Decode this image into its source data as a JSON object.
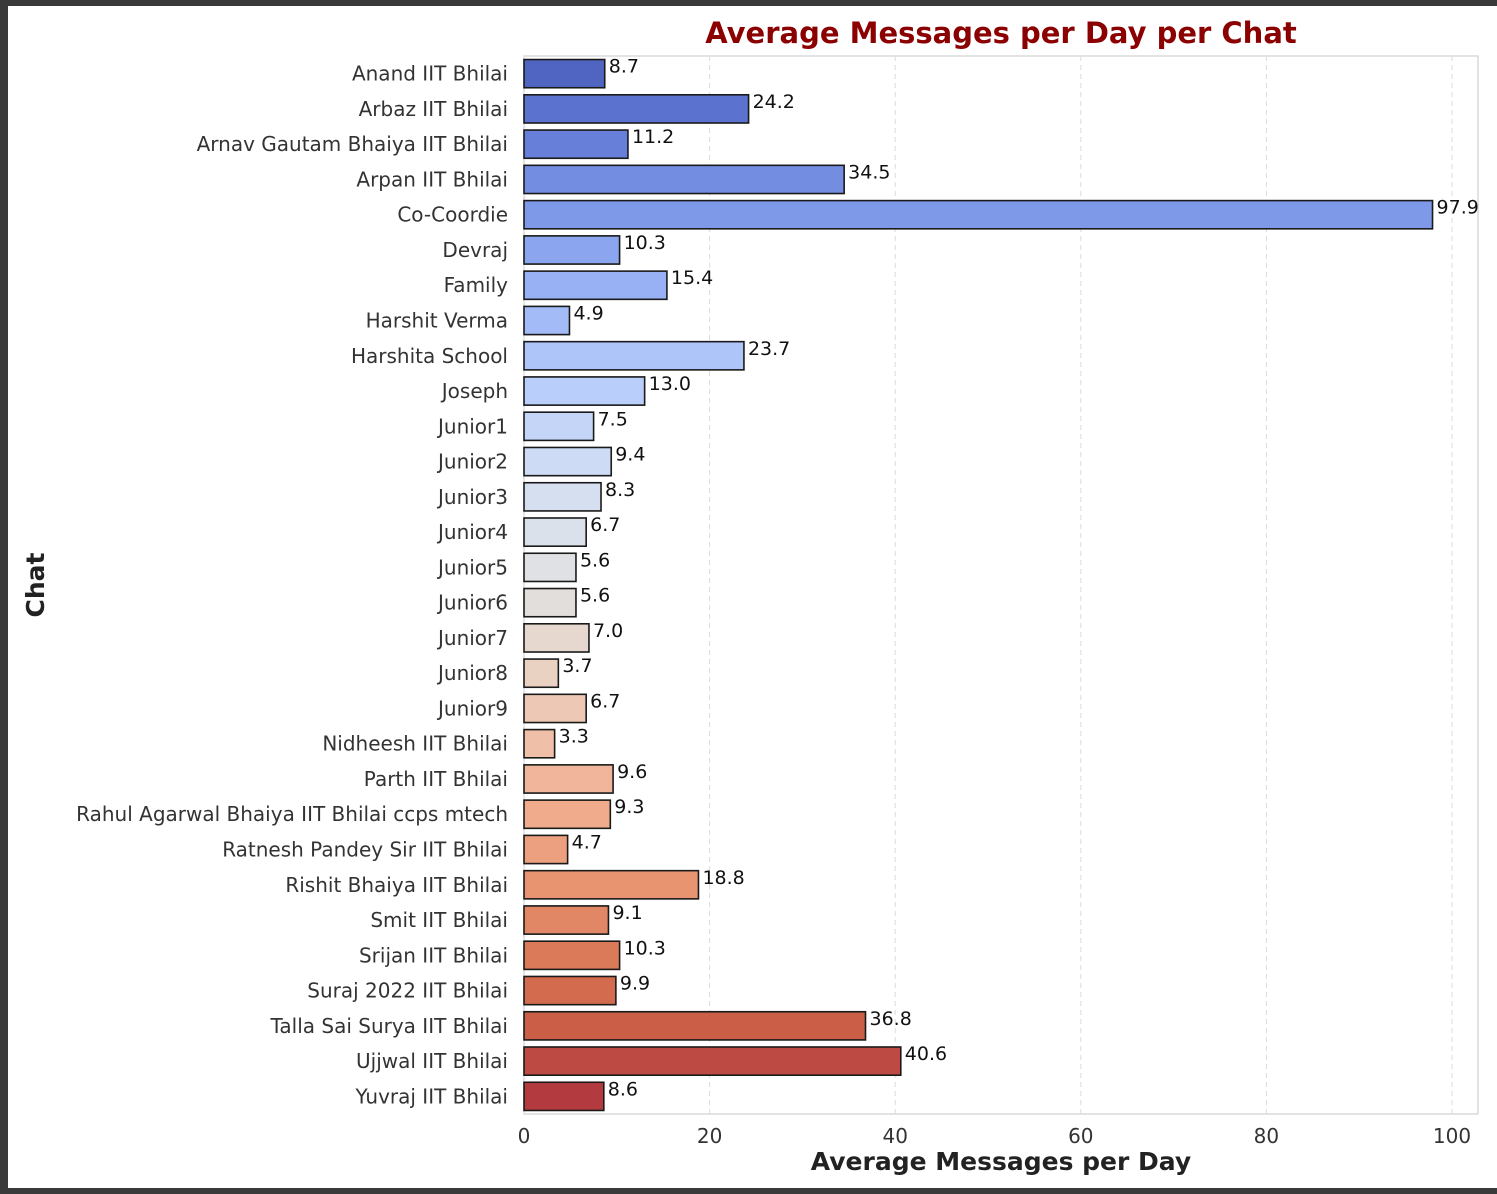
{
  "chart_data": {
    "type": "bar",
    "orientation": "horizontal",
    "title": "Average Messages per Day per Chat",
    "title_color": "#8b0000",
    "xlabel": "Average Messages per Day",
    "ylabel": "Chat",
    "xlim": [
      0,
      102.8
    ],
    "xticks": [
      0,
      20,
      40,
      60,
      80,
      100
    ],
    "grid": "vertical dashed",
    "palette": "coolwarm",
    "categories": [
      "Anand IIT Bhilai",
      "Arbaz IIT Bhilai",
      "Arnav Gautam Bhaiya IIT Bhilai",
      "Arpan IIT Bhilai",
      "Co-Coordie",
      "Devraj",
      "Family",
      "Harshit Verma",
      "Harshita School",
      "Joseph",
      "Junior1",
      "Junior2",
      "Junior3",
      "Junior4",
      "Junior5",
      "Junior6",
      "Junior7",
      "Junior8",
      "Junior9",
      "Nidheesh IIT Bhilai",
      "Parth IIT Bhilai",
      "Rahul Agarwal Bhaiya IIT Bhilai ccps mtech",
      "Ratnesh Pandey Sir IIT Bhilai",
      "Rishit Bhaiya IIT Bhilai",
      "Smit IIT Bhilai",
      "Srijan IIT Bhilai",
      "Suraj 2022 IIT Bhilai",
      "Talla Sai Surya IIT Bhilai",
      "Ujjwal IIT Bhilai",
      "Yuvraj IIT Bhilai"
    ],
    "values": [
      8.7,
      24.2,
      11.2,
      34.5,
      97.9,
      10.3,
      15.4,
      4.9,
      23.7,
      13.0,
      7.5,
      9.4,
      8.3,
      6.7,
      5.6,
      5.6,
      7.0,
      3.7,
      6.7,
      3.3,
      9.6,
      9.3,
      4.7,
      18.8,
      9.1,
      10.3,
      9.9,
      36.8,
      40.6,
      8.6
    ],
    "value_labels": [
      "8.7",
      "24.2",
      "11.2",
      "34.5",
      "97.9",
      "10.3",
      "15.4",
      "4.9",
      "23.7",
      "13.0",
      "7.5",
      "9.4",
      "8.3",
      "6.7",
      "5.6",
      "5.6",
      "7.0",
      "3.7",
      "6.7",
      "3.3",
      "9.6",
      "9.3",
      "4.7",
      "18.8",
      "9.1",
      "10.3",
      "9.9",
      "36.8",
      "40.6",
      "8.6"
    ],
    "colors": [
      "#5065c1",
      "#5b72ce",
      "#677fd8",
      "#738de1",
      "#7f99e9",
      "#8ba5ef",
      "#97b1f4",
      "#a3bbf7",
      "#aec5f9",
      "#b9cefa",
      "#c4d5f8",
      "#cddbf5",
      "#d5dff0",
      "#dbe1ea",
      "#dfe1e4",
      "#e2dedb",
      "#e6d8cf",
      "#ead2c3",
      "#edc8b5",
      "#efbfa7",
      "#f0b59a",
      "#efab8c",
      "#eca07f",
      "#e89471",
      "#e28765",
      "#db7a59",
      "#d36c4f",
      "#ca5e46",
      "#be4b43",
      "#b33a3f"
    ]
  }
}
